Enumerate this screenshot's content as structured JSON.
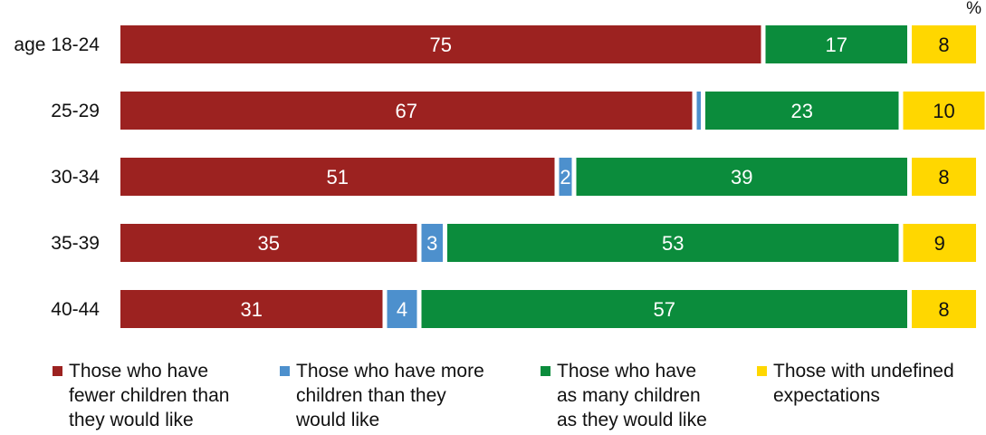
{
  "chart_data": {
    "type": "bar",
    "stacked": true,
    "orientation": "horizontal",
    "unit_label": "%",
    "categories": [
      "age 18-24",
      "25-29",
      "30-34",
      "35-39",
      "40-44"
    ],
    "xlim": [
      0,
      100
    ],
    "grid": false,
    "legend_position": "bottom",
    "series": [
      {
        "name": "Those who have fewer children than they would like",
        "color": "#9c2220",
        "values": [
          75,
          67,
          51,
          35,
          31
        ],
        "labels": [
          "75",
          "67",
          "51",
          "35",
          "31"
        ]
      },
      {
        "name": "Those who have more children than they would like",
        "color": "#4d90cd",
        "values": [
          0,
          1,
          2,
          3,
          4
        ],
        "labels": [
          "",
          "",
          "2",
          "3",
          "4"
        ]
      },
      {
        "name": "Those who have as many children as they would like",
        "color": "#0b8c3c",
        "values": [
          17,
          23,
          39,
          53,
          57
        ],
        "labels": [
          "17",
          "23",
          "39",
          "53",
          "57"
        ]
      },
      {
        "name": "Those with undefined expectations",
        "color": "#ffd700",
        "values": [
          8,
          10,
          8,
          9,
          8
        ],
        "labels": [
          "8",
          "10",
          "8",
          "9",
          "8"
        ]
      }
    ]
  },
  "legend": {
    "items": [
      {
        "label": "Those who have\nfewer children than\nthey would like",
        "color": "#9c2220"
      },
      {
        "label": "Those who have more\nchildren than they\nwould like",
        "color": "#4d90cd"
      },
      {
        "label": "Those who have\nas many children\nas they would like",
        "color": "#0b8c3c"
      },
      {
        "label": "Those with undefined\nexpectations",
        "color": "#ffd700"
      }
    ]
  }
}
